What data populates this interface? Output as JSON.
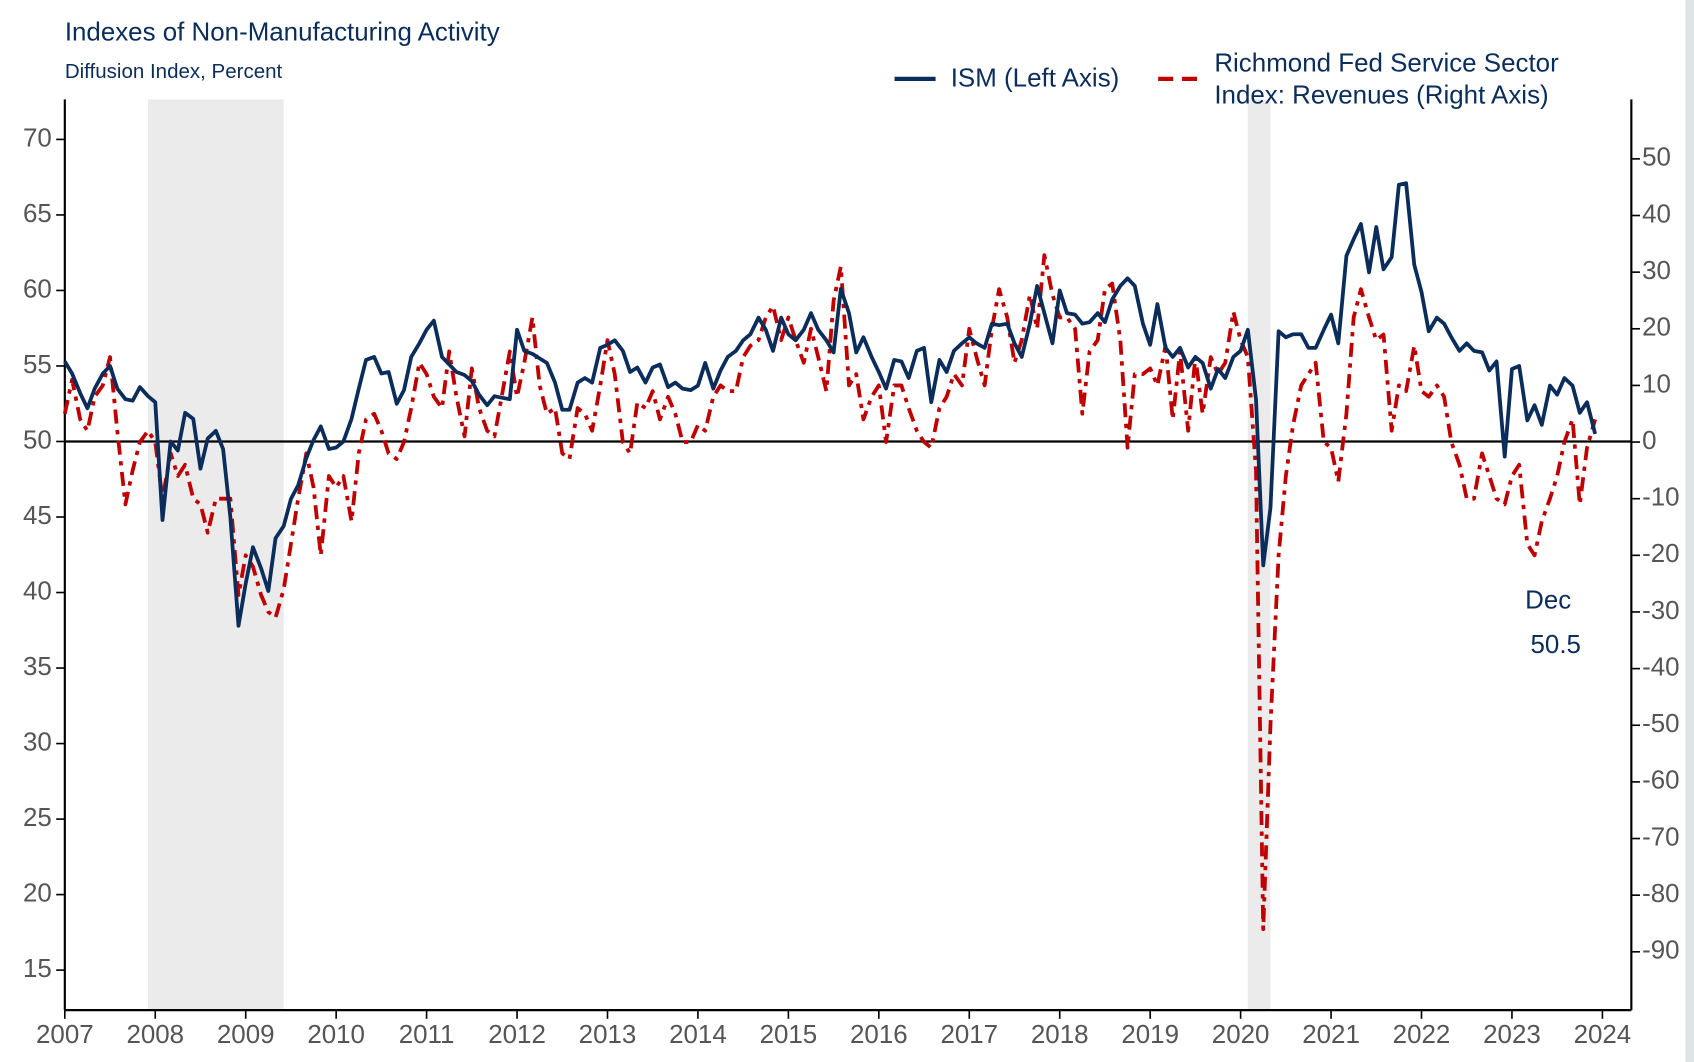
{
  "chart_data": {
    "type": "line",
    "title": "Indexes of Non-Manufacturing Activity",
    "subtitle": "Diffusion Index, Percent",
    "x": [
      2007.0,
      2007.08,
      2007.17,
      2007.25,
      2007.33,
      2007.42,
      2007.5,
      2007.58,
      2007.67,
      2007.75,
      2007.83,
      2007.92,
      2008.0,
      2008.08,
      2008.17,
      2008.25,
      2008.33,
      2008.42,
      2008.5,
      2008.58,
      2008.67,
      2008.75,
      2008.83,
      2008.92,
      2009.0,
      2009.08,
      2009.17,
      2009.25,
      2009.33,
      2009.42,
      2009.5,
      2009.58,
      2009.67,
      2009.75,
      2009.83,
      2009.92,
      2010.0,
      2010.08,
      2010.17,
      2010.25,
      2010.33,
      2010.42,
      2010.5,
      2010.58,
      2010.67,
      2010.75,
      2010.83,
      2010.92,
      2011.0,
      2011.08,
      2011.17,
      2011.25,
      2011.33,
      2011.42,
      2011.5,
      2011.58,
      2011.67,
      2011.75,
      2011.83,
      2011.92,
      2012.0,
      2012.08,
      2012.17,
      2012.25,
      2012.33,
      2012.42,
      2012.5,
      2012.58,
      2012.67,
      2012.75,
      2012.83,
      2012.92,
      2013.0,
      2013.08,
      2013.17,
      2013.25,
      2013.33,
      2013.42,
      2013.5,
      2013.58,
      2013.67,
      2013.75,
      2013.83,
      2013.92,
      2014.0,
      2014.08,
      2014.17,
      2014.25,
      2014.33,
      2014.42,
      2014.5,
      2014.58,
      2014.67,
      2014.75,
      2014.83,
      2014.92,
      2015.0,
      2015.08,
      2015.17,
      2015.25,
      2015.33,
      2015.42,
      2015.5,
      2015.58,
      2015.67,
      2015.75,
      2015.83,
      2015.92,
      2016.0,
      2016.08,
      2016.17,
      2016.25,
      2016.33,
      2016.42,
      2016.5,
      2016.58,
      2016.67,
      2016.75,
      2016.83,
      2016.92,
      2017.0,
      2017.08,
      2017.17,
      2017.25,
      2017.33,
      2017.42,
      2017.5,
      2017.58,
      2017.67,
      2017.75,
      2017.83,
      2017.92,
      2018.0,
      2018.08,
      2018.17,
      2018.25,
      2018.33,
      2018.42,
      2018.5,
      2018.58,
      2018.67,
      2018.75,
      2018.83,
      2018.92,
      2019.0,
      2019.08,
      2019.17,
      2019.25,
      2019.33,
      2019.42,
      2019.5,
      2019.58,
      2019.67,
      2019.75,
      2019.83,
      2019.92,
      2020.0,
      2020.08,
      2020.17,
      2020.25,
      2020.33,
      2020.42,
      2020.5,
      2020.58,
      2020.67,
      2020.75,
      2020.83,
      2020.92,
      2021.0,
      2021.08,
      2021.17,
      2021.25,
      2021.33,
      2021.42,
      2021.5,
      2021.58,
      2021.67,
      2021.75,
      2021.83,
      2021.92,
      2022.0,
      2022.08,
      2022.17,
      2022.25,
      2022.33,
      2022.42,
      2022.5,
      2022.58,
      2022.67,
      2022.75,
      2022.83,
      2022.92,
      2023.0,
      2023.08,
      2023.17,
      2023.25,
      2023.33,
      2023.42,
      2023.5,
      2023.58,
      2023.67,
      2023.75,
      2023.83,
      2023.92
    ],
    "series": [
      {
        "name": "ISM (Left Axis)",
        "color": "#0b2d5b",
        "dash": false,
        "axis": "y",
        "values": [
          55.3,
          54.5,
          53.2,
          52.2,
          53.5,
          54.5,
          55,
          53.5,
          52.8,
          52.7,
          53.6,
          53,
          52.6,
          44.8,
          50,
          49.4,
          51.9,
          51.5,
          48.2,
          50.2,
          50.7,
          49.5,
          45,
          37.8,
          40.6,
          43,
          41.6,
          40.1,
          43.6,
          44.4,
          46.2,
          47.1,
          48.9,
          50.1,
          51,
          49.5,
          49.6,
          50,
          51.5,
          53.5,
          55.4,
          55.6,
          54.5,
          54.6,
          52.5,
          53.4,
          55.6,
          56.5,
          57.4,
          58,
          55.6,
          55.1,
          54.6,
          54.4,
          54,
          53.1,
          52.4,
          53,
          52.9,
          52.8,
          57.4,
          56,
          55.8,
          55.5,
          55.2,
          53.9,
          52.1,
          52.1,
          53.9,
          54.2,
          53.9,
          56.2,
          56.4,
          56.7,
          56,
          54.6,
          54.9,
          53.9,
          54.9,
          55.1,
          53.6,
          53.9,
          53.5,
          53.4,
          53.7,
          55.2,
          53.5,
          54.7,
          55.6,
          56,
          56.7,
          57.1,
          58.2,
          57.4,
          56,
          58.2,
          57.1,
          56.7,
          57.4,
          58.5,
          57.4,
          56.7,
          55.9,
          60.1,
          58.5,
          55.9,
          56.9,
          55.6,
          54.6,
          53.5,
          55.4,
          55.3,
          54.2,
          56,
          56.2,
          52.6,
          55.4,
          54.6,
          56,
          56.5,
          56.9,
          56.5,
          56.2,
          57.8,
          57.7,
          57.8,
          56.5,
          55.6,
          57.8,
          60.3,
          58.5,
          56.5,
          60,
          58.5,
          58.4,
          57.8,
          57.9,
          58.5,
          57.9,
          59.4,
          60.3,
          60.8,
          60.3,
          57.8,
          56.4,
          59.1,
          56.2,
          55.6,
          56.2,
          54.9,
          55.6,
          55.2,
          53.5,
          54.8,
          54.2,
          55.6,
          56,
          57.4,
          52.8,
          41.8,
          45.6,
          57.3,
          56.9,
          57.1,
          57.1,
          56.2,
          56.2,
          57.4,
          58.4,
          56.5,
          62.3,
          63.4,
          64.4,
          61.2,
          64.2,
          61.4,
          62.2,
          67,
          67.1,
          61.7,
          59.9,
          57.3,
          58.2,
          57.8,
          56.9,
          56,
          56.5,
          56,
          55.9,
          54.7,
          55.3,
          49,
          54.8,
          55,
          51.4,
          52.4,
          51.1,
          53.7,
          53.1,
          54.2,
          53.7,
          51.9,
          52.6,
          50.5
        ]
      },
      {
        "name": "Richmond Fed Service Sector Index: Revenues (Right Axis)",
        "color": "#c00000",
        "dash": true,
        "axis": "y2",
        "values": [
          5,
          11,
          4,
          2,
          8,
          10,
          15,
          2,
          -11,
          -5,
          0,
          2,
          0,
          -10,
          -2,
          -6,
          -4,
          -10,
          -11,
          -16,
          -10,
          -10,
          -10,
          -27,
          -20,
          -22,
          -27,
          -30,
          -31,
          -26,
          -18,
          -10,
          -2,
          -8,
          -20,
          -6,
          -8,
          -6,
          -14,
          -2,
          4,
          5,
          2,
          -2,
          -3,
          0,
          6,
          14,
          12,
          8,
          6,
          16,
          8,
          1,
          13,
          6,
          2,
          1,
          8,
          16,
          8,
          14,
          22,
          10,
          5,
          6,
          -2,
          -3,
          6,
          5,
          2,
          10,
          18,
          12,
          0,
          -2,
          7,
          6,
          9,
          4,
          8,
          5,
          0,
          0,
          3,
          2,
          8,
          10,
          9,
          9,
          15,
          17,
          18,
          22,
          24,
          18,
          22,
          18,
          14,
          20,
          15,
          9,
          25,
          31,
          10,
          12,
          4,
          8,
          10,
          0,
          10,
          10,
          6,
          2,
          0,
          -1,
          6,
          8,
          12,
          10,
          20,
          15,
          10,
          20,
          27,
          22,
          14,
          18,
          26,
          20,
          33,
          26,
          22,
          22,
          20,
          5,
          16,
          18,
          27,
          28,
          18,
          -1,
          12,
          12,
          13,
          10,
          17,
          4,
          16,
          2,
          15,
          5,
          15,
          12,
          14,
          23,
          18,
          15,
          -5,
          -86,
          -50,
          -20,
          -6,
          3,
          10,
          12,
          14,
          0,
          -1,
          -7,
          5,
          22,
          27,
          22,
          18,
          19,
          2,
          10,
          9,
          17,
          9,
          8,
          10,
          8,
          0,
          -4,
          -10,
          -10,
          -2,
          -6,
          -10,
          -11,
          -6,
          -4,
          -18,
          -20,
          -14,
          -10,
          -6,
          0,
          4,
          -11,
          -1,
          4
        ]
      }
    ],
    "xlim": [
      2007,
      2024.32
    ],
    "xticks": [
      2007,
      2008,
      2009,
      2010,
      2011,
      2012,
      2013,
      2014,
      2015,
      2016,
      2017,
      2018,
      2019,
      2020,
      2021,
      2022,
      2023,
      2024
    ],
    "ylim": [
      12.35,
      72.65
    ],
    "yticks": [
      15,
      20,
      25,
      30,
      35,
      40,
      45,
      50,
      55,
      60,
      65,
      70
    ],
    "y2lim": [
      -100.3,
      60.5
    ],
    "y2ticks": [
      -90,
      -80,
      -70,
      -60,
      -50,
      -40,
      -30,
      -20,
      -10,
      0,
      10,
      20,
      30,
      40,
      50
    ],
    "reference_line": 50,
    "shaded_periods": [
      [
        2007.92,
        2009.42
      ],
      [
        2020.08,
        2020.33
      ]
    ],
    "annotation_label": "Dec",
    "annotation_value": 50.5,
    "legend": "top-right",
    "grid": false
  }
}
